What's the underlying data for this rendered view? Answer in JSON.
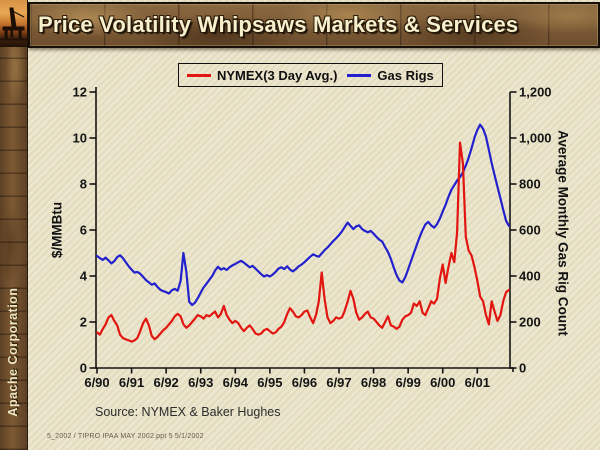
{
  "slide": {
    "title": "Price Volatility Whipsaws Markets & Services",
    "sidebar_text": "Apache Corporation",
    "source_note": "Source: NYMEX & Baker Hughes",
    "footer": "5_2002 / TIPRO IPAA MAY 2002.ppt  5  5/1/2002"
  },
  "colors": {
    "background": "#e9e3c7",
    "banner_brown": "#7a5a36",
    "title_text": "#f6f0cd",
    "nymex_red": "#e21510",
    "gas_rigs_blue": "#2321cd",
    "axis_black": "#141414"
  },
  "chart_data": {
    "type": "line",
    "title": "",
    "legend_position": "top",
    "grid": false,
    "x_frequency": "monthly",
    "x_range": [
      "Jun-1990",
      "May-2002"
    ],
    "x_tick_labels": [
      "6/90",
      "6/91",
      "6/92",
      "6/93",
      "6/94",
      "6/95",
      "6/96",
      "6/97",
      "6/98",
      "6/99",
      "6/00",
      "6/01"
    ],
    "left_axis": {
      "label": "$/MMBtu",
      "min": 0,
      "max": 12,
      "tick_labels": [
        "0",
        "2",
        "4",
        "6",
        "8",
        "10",
        "12"
      ]
    },
    "right_axis": {
      "label": "Average Monthly Gas Rig Count",
      "min": 0,
      "max": 1200,
      "tick_labels": [
        "0",
        "200",
        "400",
        "600",
        "800",
        "1,000",
        "1,200"
      ]
    },
    "legend": [
      "NYMEX(3 Day Avg.)",
      "Gas Rigs"
    ],
    "series": [
      {
        "name": "Gas Rigs",
        "axis": "right",
        "color": "#2321cd",
        "values": [
          487,
          478,
          470,
          480,
          468,
          455,
          465,
          482,
          490,
          478,
          460,
          442,
          428,
          415,
          418,
          410,
          396,
          382,
          372,
          362,
          368,
          352,
          340,
          334,
          330,
          324,
          338,
          344,
          336,
          378,
          500,
          420,
          288,
          274,
          284,
          304,
          328,
          350,
          366,
          384,
          400,
          424,
          440,
          428,
          434,
          426,
          438,
          446,
          452,
          460,
          466,
          458,
          448,
          438,
          444,
          432,
          420,
          408,
          398,
          404,
          398,
          406,
          418,
          432,
          438,
          430,
          442,
          428,
          420,
          430,
          442,
          450,
          460,
          472,
          484,
          494,
          488,
          484,
          498,
          512,
          524,
          538,
          552,
          564,
          578,
          594,
          614,
          632,
          618,
          604,
          616,
          620,
          604,
          596,
          590,
          596,
          584,
          570,
          558,
          550,
          526,
          504,
          474,
          436,
          404,
          380,
          372,
          395,
          430,
          465,
          500,
          535,
          570,
          600,
          625,
          635,
          620,
          610,
          625,
          650,
          680,
          710,
          745,
          775,
          795,
          815,
          830,
          850,
          880,
          915,
          955,
          1000,
          1035,
          1058,
          1040,
          1005,
          950,
          890,
          838,
          788,
          738,
          688,
          640,
          618
        ]
      },
      {
        "name": "NYMEX(3 Day Avg.)",
        "axis": "left",
        "color": "#e21510",
        "values": [
          1.55,
          1.45,
          1.7,
          1.9,
          2.2,
          2.3,
          2.05,
          1.85,
          1.45,
          1.3,
          1.25,
          1.2,
          1.15,
          1.2,
          1.3,
          1.6,
          1.95,
          2.15,
          1.85,
          1.4,
          1.25,
          1.35,
          1.5,
          1.65,
          1.75,
          1.9,
          2.05,
          2.25,
          2.35,
          2.25,
          1.9,
          1.75,
          1.85,
          2.0,
          2.15,
          2.3,
          2.25,
          2.15,
          2.3,
          2.25,
          2.35,
          2.45,
          2.2,
          2.35,
          2.7,
          2.3,
          2.1,
          1.95,
          2.05,
          1.95,
          1.75,
          1.6,
          1.75,
          1.85,
          1.7,
          1.5,
          1.45,
          1.5,
          1.65,
          1.7,
          1.6,
          1.5,
          1.55,
          1.7,
          1.8,
          2.0,
          2.35,
          2.6,
          2.45,
          2.25,
          2.2,
          2.3,
          2.45,
          2.5,
          2.2,
          1.95,
          2.3,
          2.9,
          4.15,
          3.0,
          2.2,
          1.95,
          2.05,
          2.2,
          2.15,
          2.2,
          2.5,
          2.9,
          3.35,
          3.0,
          2.4,
          2.1,
          2.2,
          2.35,
          2.45,
          2.2,
          2.15,
          2.0,
          1.85,
          1.75,
          2.0,
          2.25,
          1.85,
          1.8,
          1.7,
          1.8,
          2.1,
          2.25,
          2.3,
          2.4,
          2.8,
          2.7,
          2.9,
          2.4,
          2.3,
          2.6,
          2.9,
          2.8,
          3.0,
          3.9,
          4.5,
          3.7,
          4.4,
          5.0,
          4.6,
          5.9,
          9.8,
          8.9,
          5.7,
          5.1,
          4.9,
          4.4,
          3.8,
          3.1,
          2.9,
          2.3,
          1.9,
          2.9,
          2.45,
          2.05,
          2.3,
          2.9,
          3.3,
          3.4
        ]
      }
    ]
  }
}
